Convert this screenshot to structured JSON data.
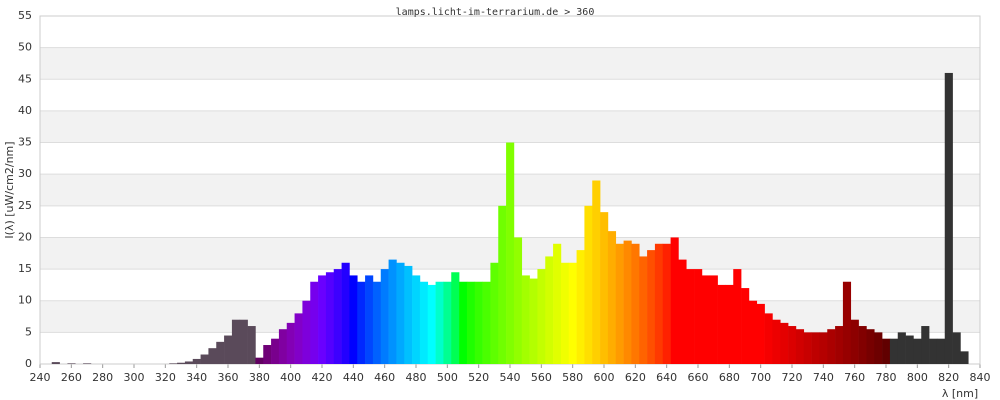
{
  "chart_data": {
    "type": "spectrum",
    "title": "lamps.licht-im-terrarium.de > 360",
    "x_label": "λ [nm]",
    "y_label": "I(λ) [uW/cm2/nm]",
    "x": [
      250,
      255,
      260,
      265,
      270,
      275,
      280,
      285,
      290,
      295,
      300,
      305,
      310,
      315,
      320,
      325,
      330,
      335,
      340,
      345,
      350,
      355,
      360,
      365,
      370,
      375,
      380,
      385,
      390,
      395,
      400,
      405,
      410,
      415,
      420,
      425,
      430,
      435,
      440,
      445,
      450,
      455,
      460,
      465,
      470,
      475,
      480,
      485,
      490,
      495,
      500,
      505,
      510,
      515,
      520,
      525,
      530,
      535,
      540,
      545,
      550,
      555,
      560,
      565,
      570,
      575,
      580,
      585,
      590,
      595,
      600,
      605,
      610,
      615,
      620,
      625,
      630,
      635,
      640,
      645,
      650,
      655,
      660,
      665,
      670,
      675,
      680,
      685,
      690,
      695,
      700,
      705,
      710,
      715,
      720,
      725,
      730,
      735,
      740,
      745,
      750,
      755,
      760,
      765,
      770,
      775,
      780,
      785,
      790,
      795,
      800,
      805,
      810,
      815,
      820,
      825,
      830
    ],
    "values": [
      0.3,
      0,
      0.1,
      0,
      0.1,
      0,
      0,
      0,
      0,
      0,
      0,
      0,
      0,
      0,
      0,
      0.1,
      0.2,
      0.4,
      0.8,
      1.5,
      2.5,
      3.5,
      4.5,
      7,
      7,
      6,
      1,
      3,
      4,
      5.5,
      6.5,
      8,
      10,
      13,
      14,
      14.5,
      15,
      16,
      14,
      13,
      14,
      13,
      15,
      16.5,
      16,
      15.5,
      14,
      13,
      12.5,
      13,
      13,
      14.5,
      13,
      13,
      13,
      13,
      16,
      25,
      35,
      20,
      14,
      13.5,
      15,
      17,
      19,
      16,
      16,
      18,
      25,
      29,
      24,
      21,
      19,
      19.5,
      19,
      17,
      18,
      19,
      19,
      20,
      16.5,
      15,
      15,
      14,
      14,
      12.5,
      12.5,
      15,
      12,
      10,
      9.5,
      8,
      7,
      6.5,
      6,
      5.5,
      5,
      5,
      5,
      5.5,
      6,
      13,
      7,
      6,
      5.5,
      5,
      4,
      4,
      5,
      4.5,
      4,
      6,
      4,
      4,
      46,
      5,
      2
    ],
    "bin_width": 5,
    "xlim": [
      240,
      840
    ],
    "ylim": [
      0,
      55
    ],
    "xticks": [
      240,
      260,
      280,
      300,
      320,
      340,
      360,
      380,
      400,
      420,
      440,
      460,
      480,
      500,
      520,
      540,
      560,
      580,
      600,
      620,
      640,
      660,
      680,
      700,
      720,
      740,
      760,
      780,
      800,
      820,
      840
    ],
    "yticks": [
      0,
      5,
      10,
      15,
      20,
      25,
      30,
      35,
      40,
      45,
      50,
      55
    ],
    "grid": true
  }
}
